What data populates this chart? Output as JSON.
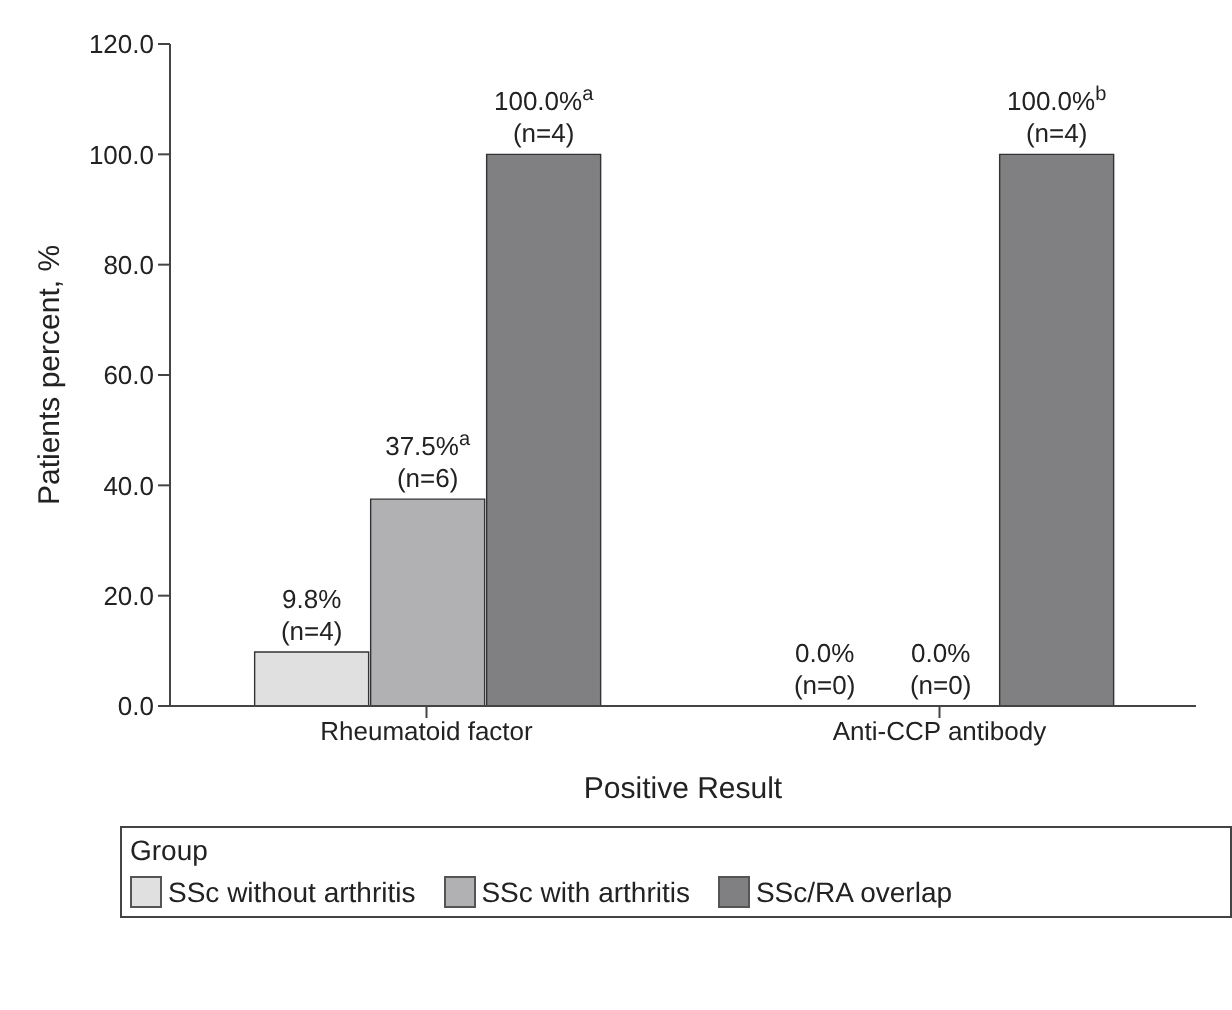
{
  "chart_data": {
    "type": "bar",
    "xlabel": "Positive Result",
    "ylabel": "Patients percent, %",
    "legend_title": "Group",
    "legend": "bottom",
    "grid": false,
    "categories": [
      "Rheumatoid factor",
      "Anti-CCP antibody"
    ],
    "series": [
      {
        "name": "SSc without arthritis",
        "color": "#e0e0e0",
        "values": [
          9.8,
          0
        ],
        "value_labels": [
          "9.8%\n(n=4)",
          "0.0%\n(n=0)"
        ]
      },
      {
        "name": "SSc with arthritis",
        "color": "#b1b1b3",
        "values": [
          37.5,
          0
        ],
        "value_labels": [
          "37.5%$^{a}$\n(n=6)",
          "0.0%\n(n=0)"
        ]
      },
      {
        "name": "SSc/RA overlap",
        "color": "#808083",
        "values": [
          100,
          100
        ],
        "value_labels": [
          "100.0%$^{a}$\n(n=4)",
          "100.0%$^{b}$\n(n=4)"
        ]
      }
    ],
    "ylim": [
      0,
      120
    ],
    "yticks": [
      {
        "value": 0,
        "label": "0.0"
      },
      {
        "value": 20,
        "label": "20.0"
      },
      {
        "value": 40,
        "label": "40.0"
      },
      {
        "value": 60,
        "label": "60.0"
      },
      {
        "value": 80,
        "label": "80.0"
      },
      {
        "value": 100,
        "label": "100.0"
      },
      {
        "value": 120,
        "label": "120.0"
      }
    ]
  }
}
